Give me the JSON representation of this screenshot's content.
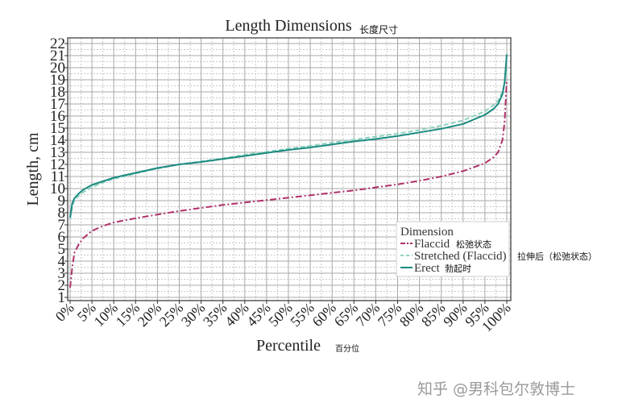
{
  "chart_data": {
    "type": "line",
    "title": "Length Dimensions",
    "title_note": "长度尺寸",
    "xlabel": "Percentile",
    "xlabel_note": "百分位",
    "ylabel": "Length, cm",
    "xlim": [
      0,
      100
    ],
    "ylim": [
      0.7,
      22.3
    ],
    "x_ticks": [
      0,
      5,
      10,
      15,
      20,
      25,
      30,
      35,
      40,
      45,
      50,
      55,
      60,
      65,
      70,
      75,
      80,
      85,
      90,
      95,
      100
    ],
    "x_tick_labels": [
      "0%",
      "5%",
      "10%",
      "15%",
      "20%",
      "25%",
      "30%",
      "35%",
      "40%",
      "45%",
      "50%",
      "55%",
      "60%",
      "65%",
      "70%",
      "75%",
      "80%",
      "85%",
      "90%",
      "95%",
      "100%"
    ],
    "y_ticks": [
      1,
      2,
      3,
      4,
      5,
      6,
      7,
      8,
      9,
      10,
      11,
      12,
      13,
      14,
      15,
      16,
      17,
      18,
      19,
      20,
      21,
      22
    ],
    "grid": true,
    "legend": {
      "title": "Dimension",
      "placement": "lower-right"
    },
    "x": [
      0,
      0.5,
      1,
      2,
      3,
      5,
      7.5,
      10,
      15,
      20,
      25,
      30,
      35,
      40,
      45,
      50,
      55,
      60,
      65,
      70,
      75,
      80,
      85,
      90,
      95,
      97,
      98,
      99,
      99.5,
      100
    ],
    "series": [
      {
        "name": "Flaccid",
        "note": "松弛状态",
        "color": "#b0306a",
        "style": "dash-dot",
        "values": [
          1.8,
          3.5,
          4.7,
          5.4,
          5.9,
          6.5,
          6.9,
          7.2,
          7.55,
          7.85,
          8.15,
          8.4,
          8.65,
          8.85,
          9.05,
          9.25,
          9.45,
          9.65,
          9.85,
          10.1,
          10.35,
          10.65,
          11.0,
          11.45,
          12.1,
          12.6,
          13.0,
          14.0,
          15.5,
          19.0
        ]
      },
      {
        "name": "Stretched (Flaccid)",
        "note": "拉伸后（松弛状态）",
        "color": "#8fd3c3",
        "style": "dashed",
        "values": [
          7.5,
          8.5,
          9.0,
          9.4,
          9.7,
          10.1,
          10.5,
          10.8,
          11.25,
          11.65,
          12.0,
          12.25,
          12.5,
          12.8,
          13.05,
          13.3,
          13.55,
          13.8,
          14.05,
          14.3,
          14.55,
          14.85,
          15.2,
          15.65,
          16.4,
          16.9,
          17.3,
          18.0,
          18.7,
          19.8
        ]
      },
      {
        "name": "Erect",
        "note": "勃起时",
        "color": "#1a8a80",
        "style": "solid",
        "values": [
          7.6,
          8.8,
          9.2,
          9.6,
          9.9,
          10.3,
          10.6,
          10.9,
          11.3,
          11.7,
          12.0,
          12.2,
          12.45,
          12.7,
          12.95,
          13.2,
          13.4,
          13.65,
          13.9,
          14.1,
          14.35,
          14.65,
          14.95,
          15.35,
          16.1,
          16.6,
          17.0,
          17.8,
          18.8,
          21.1
        ]
      }
    ]
  },
  "watermark": "知乎 @男科包尔敦博士"
}
